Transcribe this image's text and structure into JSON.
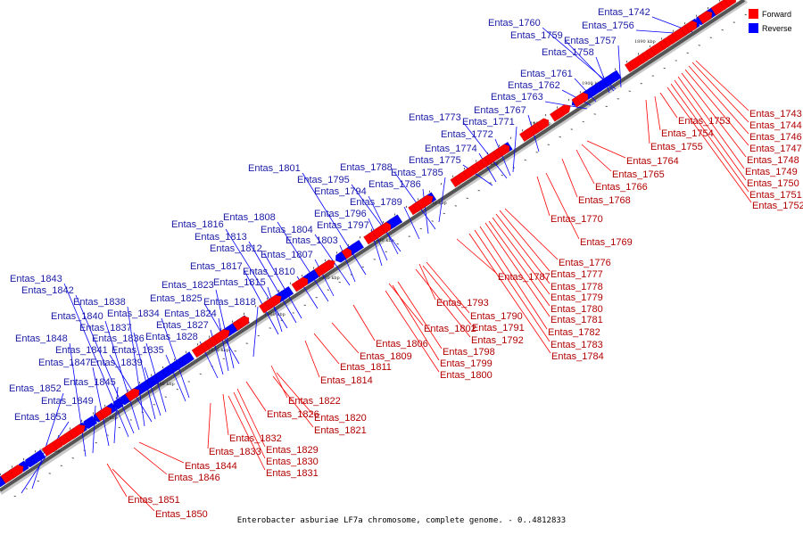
{
  "caption": "Enterobacter asburiae LF7a chromosome, complete genome. - 0..4812833",
  "legend": {
    "forward": {
      "label": "Forward",
      "color": "#ff0000"
    },
    "reverse": {
      "label": "Reverse",
      "color": "#0000ff"
    }
  },
  "kbp_ticks": [
    "1890 kbp",
    "1900 kbp",
    "1910 kbp",
    "1920 kbp",
    "1930 kbp",
    "1940 kbp",
    "1950 kbp",
    "1960 kbp",
    "1970 kbp",
    "1980 kbp",
    "1990 kbp",
    "2000 kbp"
  ],
  "forward_genes": [
    "Entas_1743",
    "Entas_1744",
    "Entas_1746",
    "Entas_1747",
    "Entas_1748",
    "Entas_1749",
    "Entas_1750",
    "Entas_1751",
    "Entas_1752",
    "Entas_1753",
    "Entas_1754",
    "Entas_1755",
    "Entas_1764",
    "Entas_1765",
    "Entas_1766",
    "Entas_1768",
    "Entas_1770",
    "Entas_1769",
    "Entas_1776",
    "Entas_1777",
    "Entas_1778",
    "Entas_1779",
    "Entas_1780",
    "Entas_1781",
    "Entas_1782",
    "Entas_1783",
    "Entas_1784",
    "Entas_1787",
    "Entas_1793",
    "Entas_1790",
    "Entas_1791",
    "Entas_1792",
    "Entas_1802",
    "Entas_1798",
    "Entas_1799",
    "Entas_1800",
    "Entas_1806",
    "Entas_1809",
    "Entas_1811",
    "Entas_1814",
    "Entas_1822",
    "Entas_1826",
    "Entas_1820",
    "Entas_1821",
    "Entas_1832",
    "Entas_1833",
    "Entas_1829",
    "Entas_1830",
    "Entas_1831",
    "Entas_1844",
    "Entas_1846",
    "Entas_1851",
    "Entas_1850"
  ],
  "reverse_genes": [
    "Entas_1742",
    "Entas_1756",
    "Entas_1757",
    "Entas_1758",
    "Entas_1759",
    "Entas_1760",
    "Entas_1761",
    "Entas_1762",
    "Entas_1763",
    "Entas_1767",
    "Entas_1771",
    "Entas_1772",
    "Entas_1773",
    "Entas_1774",
    "Entas_1775",
    "Entas_1785",
    "Entas_1786",
    "Entas_1788",
    "Entas_1789",
    "Entas_1794",
    "Entas_1795",
    "Entas_1796",
    "Entas_1797",
    "Entas_1801",
    "Entas_1803",
    "Entas_1804",
    "Entas_1807",
    "Entas_1808",
    "Entas_1810",
    "Entas_1812",
    "Entas_1813",
    "Entas_1815",
    "Entas_1816",
    "Entas_1817",
    "Entas_1818",
    "Entas_1823",
    "Entas_1824",
    "Entas_1825",
    "Entas_1827",
    "Entas_1828",
    "Entas_1834",
    "Entas_1835",
    "Entas_1836",
    "Entas_1837",
    "Entas_1838",
    "Entas_1839",
    "Entas_1840",
    "Entas_1841",
    "Entas_1842",
    "Entas_1843",
    "Entas_1845",
    "Entas_1847",
    "Entas_1848",
    "Entas_1849",
    "Entas_1852",
    "Entas_1853"
  ]
}
